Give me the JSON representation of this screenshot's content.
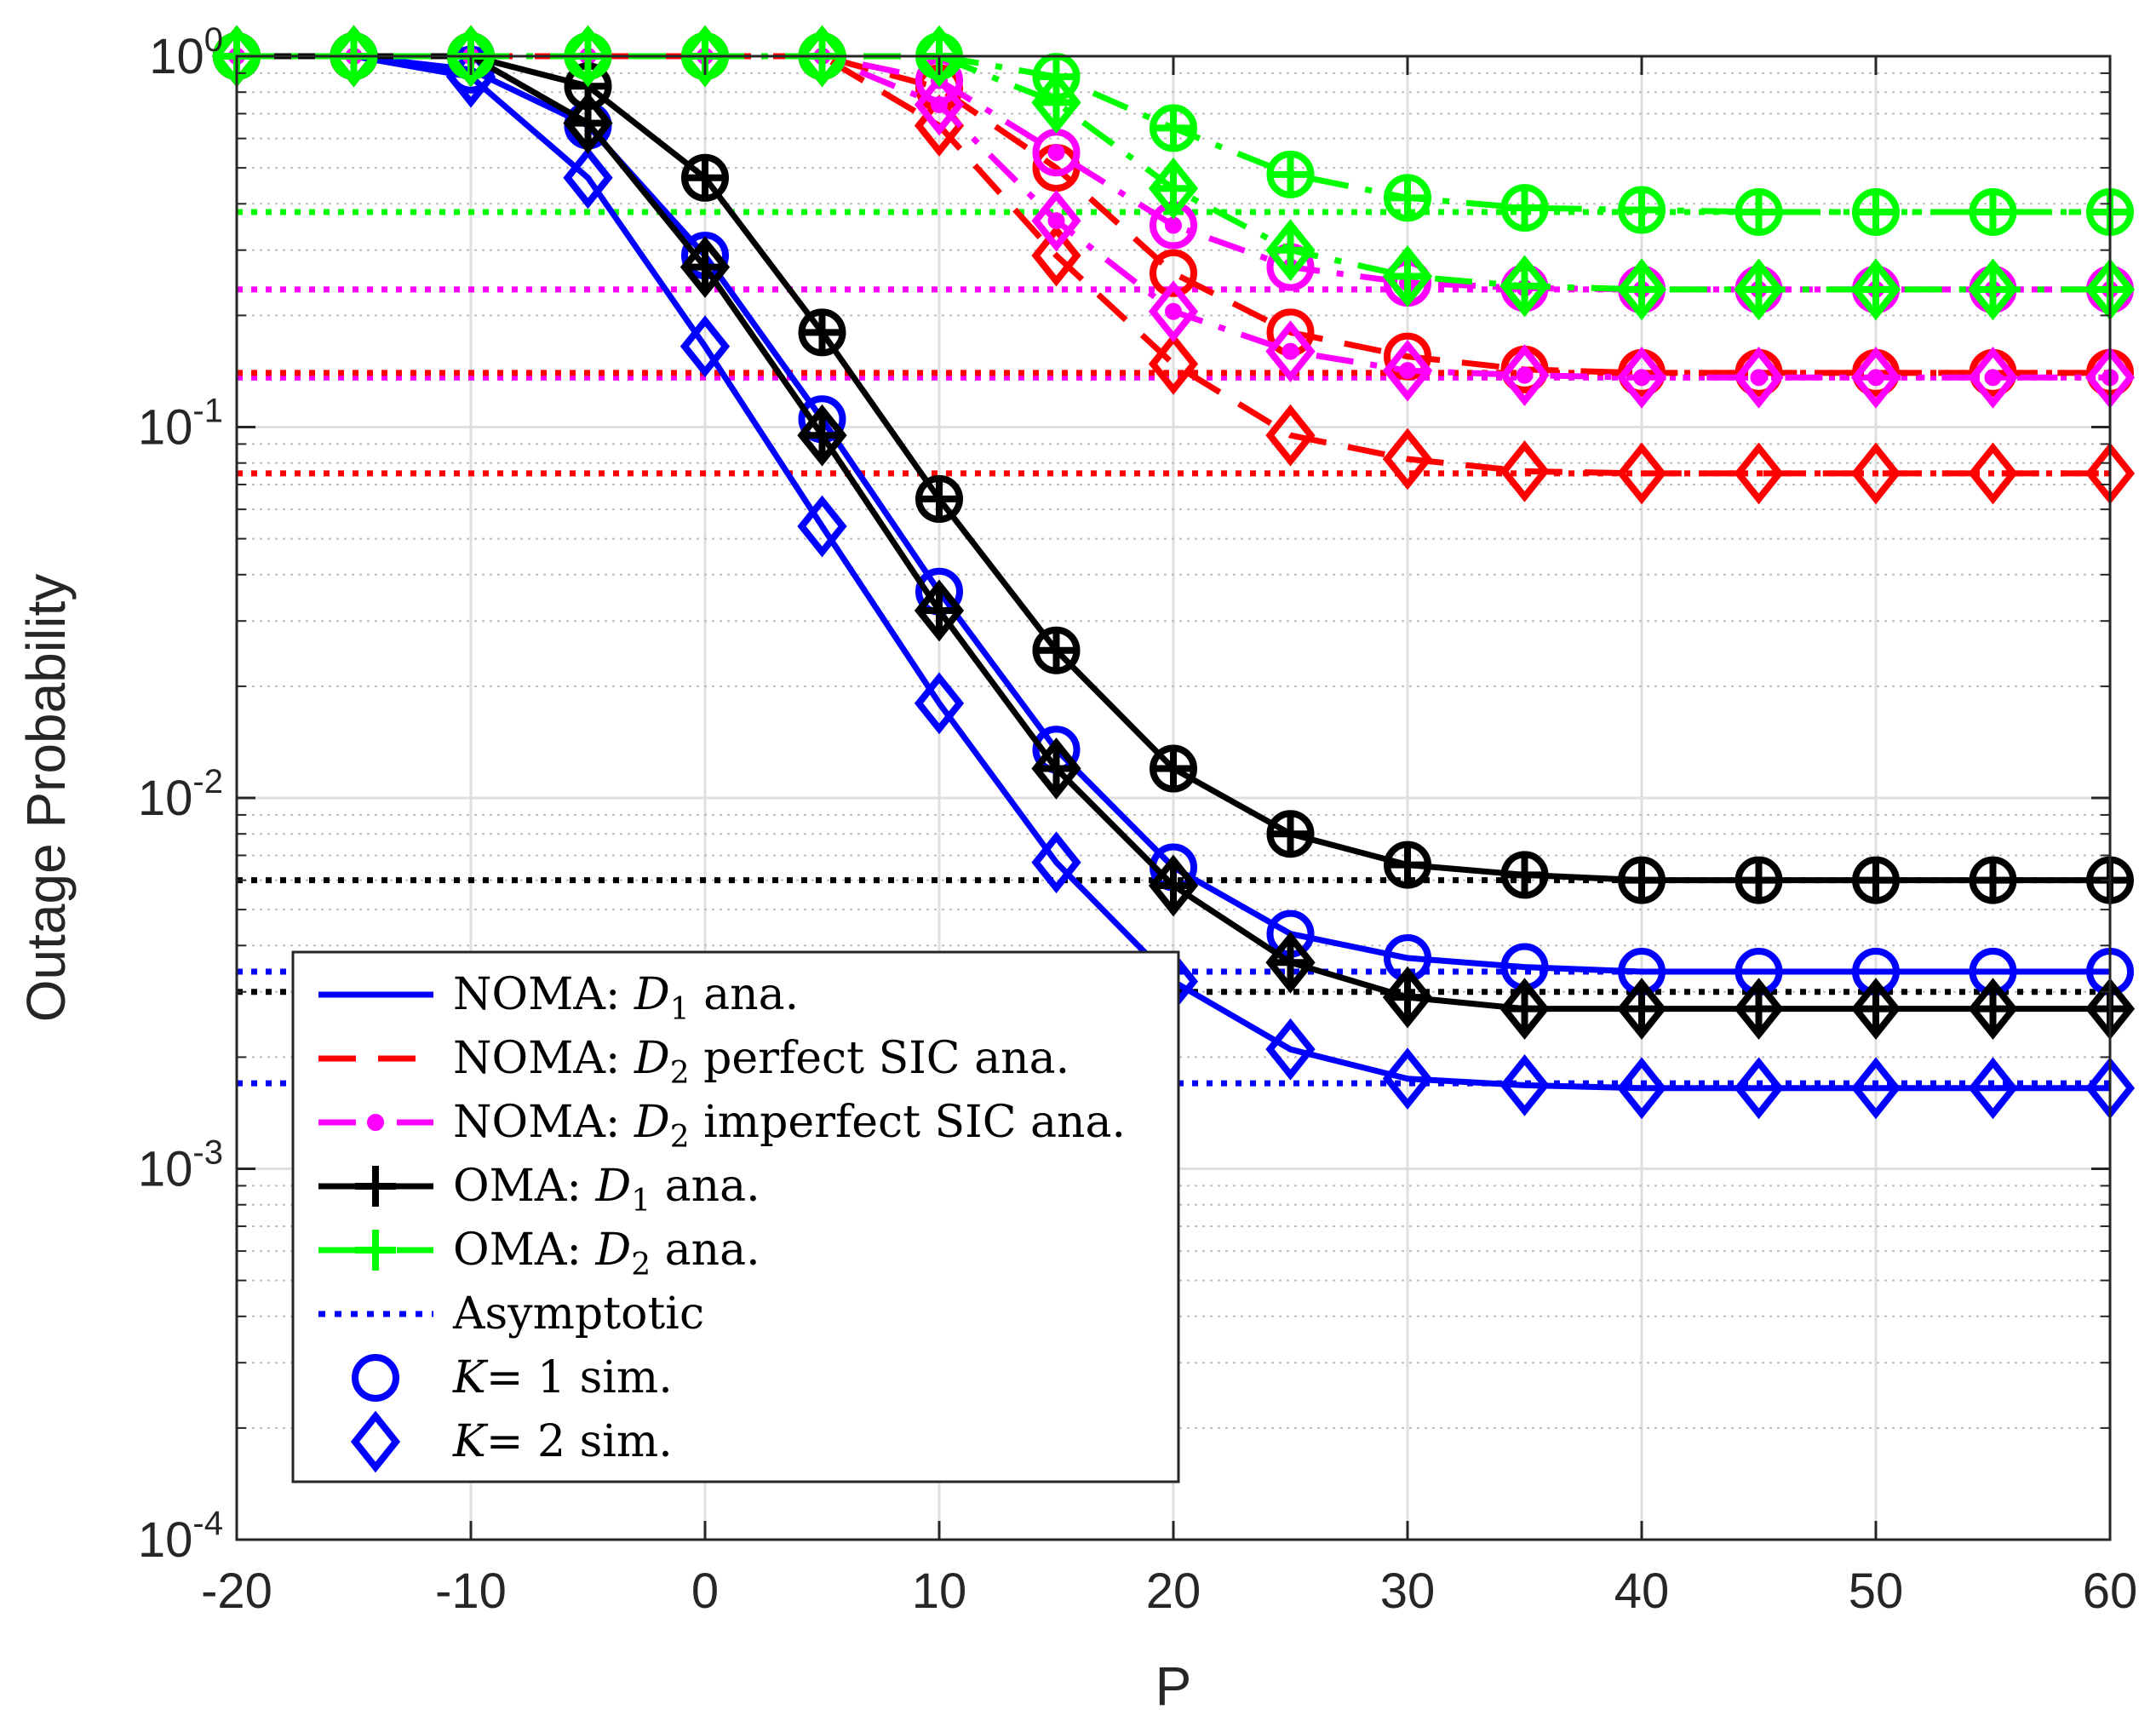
{
  "chart_data": {
    "type": "line",
    "xlabel": "P",
    "ylabel": "Outage Probability",
    "xlim": [
      -20,
      60
    ],
    "ylim": [
      0.0001,
      1
    ],
    "yscale": "log",
    "grid": true,
    "x_ticks": [
      -20,
      -10,
      0,
      10,
      20,
      30,
      40,
      50,
      60
    ],
    "x_tick_labels": [
      "-20",
      "-10",
      "0",
      "10",
      "20",
      "30",
      "40",
      "50",
      "60"
    ],
    "y_ticks": [
      1,
      0.1,
      0.01,
      0.001,
      0.0001
    ],
    "y_tick_labels": [
      {
        "base": "10",
        "exp": "0"
      },
      {
        "base": "10",
        "exp": "-1"
      },
      {
        "base": "10",
        "exp": "-2"
      },
      {
        "base": "10",
        "exp": "-3"
      },
      {
        "base": "10",
        "exp": "-4"
      }
    ],
    "x": [
      -20,
      -15,
      -10,
      -5,
      0,
      5,
      10,
      15,
      20,
      25,
      30,
      35,
      40,
      45,
      50,
      55,
      60
    ],
    "series": [
      {
        "name": "NOMA D1 K=1",
        "group": "noma-d1",
        "color": "#0000FF",
        "style": "solid",
        "marker": "circle",
        "values": [
          1,
          1,
          0.92,
          0.65,
          0.29,
          0.105,
          0.036,
          0.0135,
          0.0065,
          0.0043,
          0.0037,
          0.0035,
          0.0034,
          0.0034,
          0.0034,
          0.0034,
          0.0034
        ]
      },
      {
        "name": "NOMA D1 K=2",
        "group": "noma-d1",
        "color": "#0000FF",
        "style": "solid",
        "marker": "diamond",
        "values": [
          1,
          1,
          0.88,
          0.47,
          0.165,
          0.054,
          0.018,
          0.0067,
          0.0032,
          0.0021,
          0.00175,
          0.00168,
          0.00165,
          0.00165,
          0.00165,
          0.00165,
          0.00165
        ]
      },
      {
        "name": "NOMA D2 perfect SIC K=1",
        "group": "noma-d2-perfect",
        "color": "#FF0000",
        "style": "dashed",
        "marker": "circle",
        "values": [
          1,
          1,
          1,
          1,
          1,
          1,
          0.82,
          0.5,
          0.26,
          0.18,
          0.155,
          0.143,
          0.14,
          0.14,
          0.14,
          0.14,
          0.14
        ]
      },
      {
        "name": "NOMA D2 perfect SIC K=2",
        "group": "noma-d2-perfect",
        "color": "#FF0000",
        "style": "dashed",
        "marker": "diamond",
        "values": [
          1,
          1,
          1,
          1,
          1,
          1,
          0.65,
          0.29,
          0.148,
          0.095,
          0.082,
          0.076,
          0.075,
          0.075,
          0.075,
          0.075,
          0.075
        ]
      },
      {
        "name": "NOMA D2 imperfect SIC K=1",
        "group": "noma-d2-imperfect",
        "color": "#FF00FF",
        "style": "dashdot",
        "marker": "circle",
        "values": [
          1,
          1,
          1,
          1,
          1,
          1,
          0.86,
          0.55,
          0.35,
          0.27,
          0.245,
          0.237,
          0.235,
          0.235,
          0.235,
          0.235,
          0.235
        ]
      },
      {
        "name": "NOMA D2 imperfect SIC K=2",
        "group": "noma-d2-imperfect",
        "color": "#FF00FF",
        "style": "dashdot",
        "marker": "diamond",
        "values": [
          1,
          1,
          1,
          1,
          1,
          1,
          0.74,
          0.36,
          0.205,
          0.16,
          0.142,
          0.138,
          0.136,
          0.136,
          0.136,
          0.136,
          0.136
        ]
      },
      {
        "name": "OMA D1 K=1",
        "group": "oma-d1",
        "color": "#000000",
        "style": "solid",
        "marker": "circle",
        "values": [
          1,
          1,
          1,
          0.83,
          0.47,
          0.18,
          0.064,
          0.025,
          0.012,
          0.008,
          0.0066,
          0.0062,
          0.006,
          0.006,
          0.006,
          0.006,
          0.006
        ]
      },
      {
        "name": "OMA D1 K=2",
        "group": "oma-d1",
        "color": "#000000",
        "style": "solid",
        "marker": "diamond",
        "values": [
          1,
          1,
          1,
          0.66,
          0.27,
          0.095,
          0.032,
          0.012,
          0.0058,
          0.0036,
          0.0029,
          0.0027,
          0.0027,
          0.0027,
          0.0027,
          0.0027,
          0.0027
        ]
      },
      {
        "name": "OMA D2 K=1",
        "group": "oma-d2",
        "color": "#00FF00",
        "style": "dashdot",
        "marker": "circle",
        "values": [
          1,
          1,
          1,
          1,
          1,
          1,
          1,
          0.88,
          0.64,
          0.48,
          0.415,
          0.39,
          0.385,
          0.38,
          0.38,
          0.38,
          0.38
        ]
      },
      {
        "name": "OMA D2 K=2",
        "group": "oma-d2",
        "color": "#00FF00",
        "style": "dashdot",
        "marker": "diamond",
        "values": [
          1,
          1,
          1,
          1,
          1,
          1,
          1,
          0.75,
          0.44,
          0.3,
          0.255,
          0.24,
          0.235,
          0.235,
          0.235,
          0.235,
          0.235
        ]
      }
    ],
    "asymptotes": [
      {
        "name": "Asymptotic OMA D2 K=1",
        "color": "#00FF00",
        "value": 0.38,
        "from_x": -20
      },
      {
        "name": "Asymptotic D2 K=2",
        "color": "#FF00FF",
        "value": 0.235,
        "from_x": -20
      },
      {
        "name": "Asymptotic imperfect SIC K=2",
        "color": "#FF00FF",
        "value": 0.136,
        "from_x": -20
      },
      {
        "name": "Asymptotic perfect SIC K=1",
        "color": "#FF0000",
        "value": 0.14,
        "from_x": -20
      },
      {
        "name": "Asymptotic perfect SIC K=2",
        "color": "#FF0000",
        "value": 0.075,
        "from_x": -20
      },
      {
        "name": "Asymptotic OMA D1 K=1",
        "color": "#000000",
        "value": 0.006,
        "from_x": -20
      },
      {
        "name": "Asymptotic OMA D1 K=2",
        "color": "#000000",
        "value": 0.003,
        "from_x": -20
      },
      {
        "name": "Asymptotic NOMA D1 K=1",
        "color": "#0000FF",
        "value": 0.0034,
        "from_x": -20
      },
      {
        "name": "Asymptotic NOMA D1 K=2",
        "color": "#0000FF",
        "value": 0.0017,
        "from_x": -20
      }
    ],
    "legend": {
      "position": "lower-left",
      "entries": [
        {
          "prefix": "NOMA: ",
          "var": "D",
          "sub": "1",
          "suffix": " ana.",
          "color": "#0000FF",
          "style": "solid",
          "marker": "none"
        },
        {
          "prefix": "NOMA: ",
          "var": "D",
          "sub": "2",
          "suffix": " perfect SIC ana.",
          "color": "#FF0000",
          "style": "dashed",
          "marker": "none"
        },
        {
          "prefix": "NOMA: ",
          "var": "D",
          "sub": "2",
          "suffix": " imperfect SIC ana.",
          "color": "#FF00FF",
          "style": "dashdot",
          "marker": "dot"
        },
        {
          "prefix": "OMA: ",
          "var": "D",
          "sub": "1",
          "suffix": " ana.",
          "color": "#000000",
          "style": "solid",
          "marker": "plus"
        },
        {
          "prefix": "OMA: ",
          "var": "D",
          "sub": "2",
          "suffix": " ana.",
          "color": "#00FF00",
          "style": "dashdot",
          "marker": "plus"
        },
        {
          "prefix": "Asymptotic",
          "var": "",
          "sub": "",
          "suffix": "",
          "color": "#0000FF",
          "style": "dotted",
          "marker": "none"
        },
        {
          "prefix": "",
          "var": "K",
          "sub": "",
          "suffix": "= 1 sim.",
          "color": "#0000FF",
          "style": "none",
          "marker": "circle"
        },
        {
          "prefix": "",
          "var": "K",
          "sub": "",
          "suffix": "= 2 sim.",
          "color": "#0000FF",
          "style": "none",
          "marker": "diamond"
        }
      ]
    }
  }
}
